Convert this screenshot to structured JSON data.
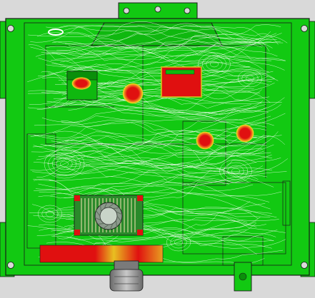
{
  "image": {
    "kind": "thermal-airflow-simulation-render",
    "colors": {
      "background_gray": "#d9d9d9",
      "chassis_green": "#12c912",
      "dark_green": "#0a8f0a",
      "outline": "#1a1a1a",
      "streamline": "#ffffff",
      "hot_red": "#e01010",
      "warm_yellow": "#f0e020",
      "connector_gray": "#9a9a9a"
    },
    "features": {
      "hot_spots": 6,
      "heatsink_fan": true,
      "cable_gland": true,
      "streamlines": true
    }
  }
}
